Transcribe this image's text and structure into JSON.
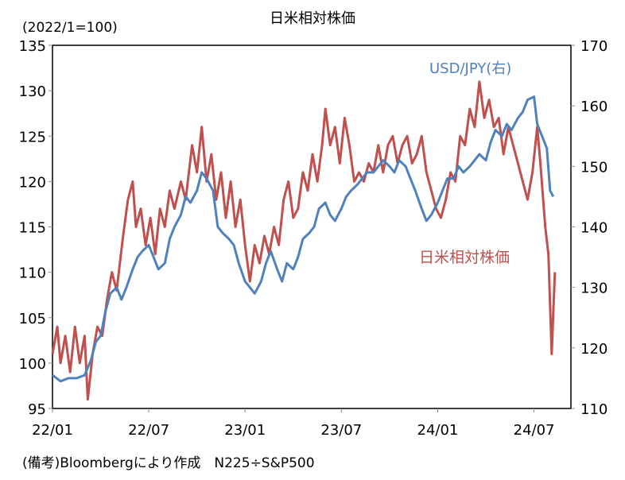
{
  "chart_data": {
    "type": "line",
    "title": "日米相対株価",
    "left_unit_label": "(2022/1=100)",
    "footnote": "(備考)Bloombergにより作成　N225÷S&P500",
    "x_unit": "months since 2022/01",
    "x_ticks": [
      "22/01",
      "22/07",
      "23/01",
      "23/07",
      "24/01",
      "24/07"
    ],
    "x_tick_months": [
      0,
      6,
      12,
      18,
      24,
      30
    ],
    "xlim": [
      0,
      32.3
    ],
    "ylim_left": [
      95,
      135
    ],
    "yticks_left": [
      "95",
      "100",
      "105",
      "110",
      "115",
      "120",
      "125",
      "130",
      "135"
    ],
    "ylim_right": [
      110,
      170
    ],
    "yticks_right": [
      "110",
      "120",
      "130",
      "140",
      "150",
      "160",
      "170"
    ],
    "grid": false,
    "colors": {
      "relative": "#C0504D",
      "usdjpy": "#4F81BD"
    },
    "series": [
      {
        "name": "日米相対株価",
        "axis": "left",
        "points": [
          [
            0,
            101
          ],
          [
            0.3,
            104
          ],
          [
            0.5,
            100
          ],
          [
            0.8,
            103
          ],
          [
            1.1,
            99
          ],
          [
            1.4,
            104
          ],
          [
            1.7,
            100
          ],
          [
            2.0,
            103
          ],
          [
            2.2,
            96
          ],
          [
            2.5,
            101
          ],
          [
            2.8,
            104
          ],
          [
            3.1,
            103
          ],
          [
            3.4,
            107
          ],
          [
            3.7,
            110
          ],
          [
            4.0,
            108
          ],
          [
            4.4,
            114
          ],
          [
            4.7,
            118
          ],
          [
            5.0,
            120
          ],
          [
            5.2,
            115
          ],
          [
            5.5,
            117
          ],
          [
            5.8,
            113
          ],
          [
            6.1,
            116
          ],
          [
            6.4,
            112
          ],
          [
            6.7,
            117
          ],
          [
            7.0,
            115
          ],
          [
            7.3,
            119
          ],
          [
            7.6,
            117
          ],
          [
            8.0,
            120
          ],
          [
            8.3,
            118
          ],
          [
            8.7,
            124
          ],
          [
            9.0,
            121
          ],
          [
            9.3,
            126
          ],
          [
            9.6,
            120
          ],
          [
            9.9,
            123
          ],
          [
            10.2,
            118
          ],
          [
            10.5,
            121
          ],
          [
            10.8,
            116
          ],
          [
            11.1,
            120
          ],
          [
            11.4,
            115
          ],
          [
            11.7,
            118
          ],
          [
            12.0,
            113
          ],
          [
            12.3,
            109
          ],
          [
            12.6,
            113
          ],
          [
            12.9,
            111
          ],
          [
            13.2,
            114
          ],
          [
            13.5,
            112
          ],
          [
            13.8,
            115
          ],
          [
            14.1,
            113
          ],
          [
            14.4,
            118
          ],
          [
            14.7,
            120
          ],
          [
            15.0,
            116
          ],
          [
            15.3,
            117
          ],
          [
            15.6,
            121
          ],
          [
            15.9,
            119
          ],
          [
            16.2,
            123
          ],
          [
            16.5,
            120
          ],
          [
            16.8,
            124
          ],
          [
            17.0,
            128
          ],
          [
            17.3,
            124
          ],
          [
            17.6,
            126
          ],
          [
            17.9,
            122
          ],
          [
            18.2,
            127
          ],
          [
            18.5,
            124
          ],
          [
            18.8,
            120
          ],
          [
            19.1,
            121
          ],
          [
            19.4,
            120
          ],
          [
            19.7,
            122
          ],
          [
            20.0,
            121
          ],
          [
            20.3,
            124
          ],
          [
            20.6,
            121
          ],
          [
            20.9,
            124
          ],
          [
            21.2,
            125
          ],
          [
            21.5,
            122
          ],
          [
            21.8,
            124
          ],
          [
            22.1,
            125
          ],
          [
            22.4,
            122
          ],
          [
            22.7,
            123
          ],
          [
            23.0,
            125
          ],
          [
            23.3,
            121
          ],
          [
            23.6,
            119
          ],
          [
            23.9,
            117
          ],
          [
            24.2,
            116
          ],
          [
            24.5,
            118
          ],
          [
            24.8,
            121
          ],
          [
            25.1,
            120
          ],
          [
            25.4,
            125
          ],
          [
            25.7,
            124
          ],
          [
            26.0,
            128
          ],
          [
            26.3,
            126
          ],
          [
            26.6,
            131
          ],
          [
            26.9,
            127
          ],
          [
            27.2,
            129
          ],
          [
            27.5,
            126
          ],
          [
            27.8,
            127
          ],
          [
            28.1,
            123
          ],
          [
            28.4,
            126
          ],
          [
            28.7,
            124
          ],
          [
            29.0,
            122
          ],
          [
            29.3,
            120
          ],
          [
            29.6,
            118
          ],
          [
            29.9,
            121
          ],
          [
            30.2,
            126
          ],
          [
            30.4,
            122
          ],
          [
            30.7,
            115
          ],
          [
            30.9,
            112
          ],
          [
            31.1,
            101
          ],
          [
            31.3,
            110
          ]
        ]
      },
      {
        "name": "USD/JPY(右)",
        "axis": "right",
        "points": [
          [
            0,
            115.5
          ],
          [
            0.5,
            114.5
          ],
          [
            1.0,
            115
          ],
          [
            1.5,
            115
          ],
          [
            2.0,
            115.5
          ],
          [
            2.4,
            118
          ],
          [
            2.7,
            121
          ],
          [
            3.0,
            122
          ],
          [
            3.3,
            126
          ],
          [
            3.6,
            129
          ],
          [
            4.0,
            130
          ],
          [
            4.3,
            128
          ],
          [
            4.6,
            130
          ],
          [
            5.0,
            133
          ],
          [
            5.3,
            135
          ],
          [
            5.6,
            136
          ],
          [
            6.0,
            137
          ],
          [
            6.3,
            135
          ],
          [
            6.6,
            133
          ],
          [
            7.0,
            134
          ],
          [
            7.3,
            138
          ],
          [
            7.6,
            140
          ],
          [
            8.0,
            142
          ],
          [
            8.3,
            145
          ],
          [
            8.6,
            144
          ],
          [
            9.0,
            146
          ],
          [
            9.3,
            149
          ],
          [
            9.6,
            148
          ],
          [
            10.0,
            146
          ],
          [
            10.3,
            140
          ],
          [
            10.6,
            139
          ],
          [
            11.0,
            138
          ],
          [
            11.3,
            137
          ],
          [
            11.6,
            134
          ],
          [
            12.0,
            131
          ],
          [
            12.3,
            130
          ],
          [
            12.6,
            129
          ],
          [
            13.0,
            131
          ],
          [
            13.3,
            134
          ],
          [
            13.6,
            136
          ],
          [
            14.0,
            133
          ],
          [
            14.3,
            131
          ],
          [
            14.6,
            134
          ],
          [
            15.0,
            133
          ],
          [
            15.3,
            135
          ],
          [
            15.6,
            138
          ],
          [
            16.0,
            139
          ],
          [
            16.3,
            140
          ],
          [
            16.6,
            143
          ],
          [
            17.0,
            144
          ],
          [
            17.3,
            142
          ],
          [
            17.6,
            141
          ],
          [
            18.0,
            143
          ],
          [
            18.3,
            145
          ],
          [
            18.6,
            146
          ],
          [
            19.0,
            147
          ],
          [
            19.3,
            148
          ],
          [
            19.6,
            149
          ],
          [
            20.0,
            149
          ],
          [
            20.3,
            150
          ],
          [
            20.6,
            151
          ],
          [
            21.0,
            150
          ],
          [
            21.3,
            149
          ],
          [
            21.6,
            151
          ],
          [
            22.0,
            150
          ],
          [
            22.3,
            148
          ],
          [
            22.6,
            146
          ],
          [
            23.0,
            143
          ],
          [
            23.3,
            141
          ],
          [
            23.6,
            142
          ],
          [
            24.0,
            144
          ],
          [
            24.3,
            146
          ],
          [
            24.6,
            148
          ],
          [
            25.0,
            148
          ],
          [
            25.3,
            150
          ],
          [
            25.6,
            149
          ],
          [
            26.0,
            150
          ],
          [
            26.3,
            151
          ],
          [
            26.6,
            152
          ],
          [
            27.0,
            151
          ],
          [
            27.3,
            154
          ],
          [
            27.6,
            156
          ],
          [
            28.0,
            155
          ],
          [
            28.3,
            157
          ],
          [
            28.6,
            156
          ],
          [
            29.0,
            158
          ],
          [
            29.3,
            159
          ],
          [
            29.6,
            161
          ],
          [
            30.0,
            161.5
          ],
          [
            30.2,
            157
          ],
          [
            30.5,
            155
          ],
          [
            30.8,
            153
          ],
          [
            31.0,
            146
          ],
          [
            31.2,
            145
          ]
        ]
      }
    ]
  }
}
